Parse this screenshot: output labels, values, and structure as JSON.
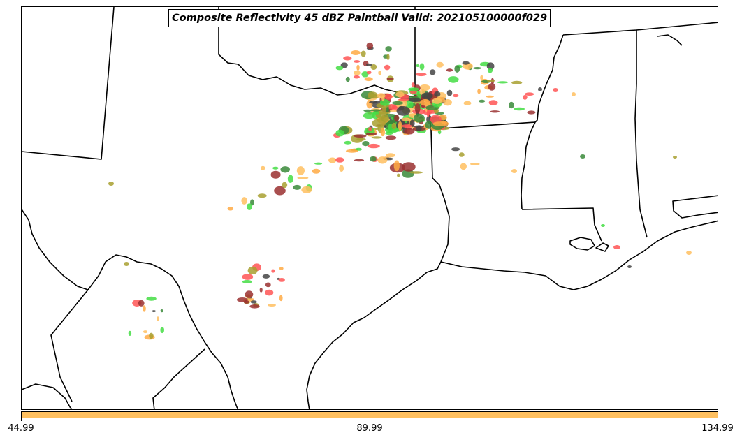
{
  "title": "Composite Reflectivity 45 dBZ Paintball Valid: 202105100000f029",
  "colorbar": {
    "color": "#ffc060",
    "ticks": [
      "44.99",
      "89.99",
      "134.99"
    ]
  },
  "palette": {
    "red": "#ff5555",
    "orange": "#ffaa44",
    "light_orange": "#ffc060",
    "green": "#44dd44",
    "dark_green": "#3a8a3a",
    "olive": "#a8a030",
    "maroon": "#9a3030",
    "dark_gray": "#444444"
  }
}
